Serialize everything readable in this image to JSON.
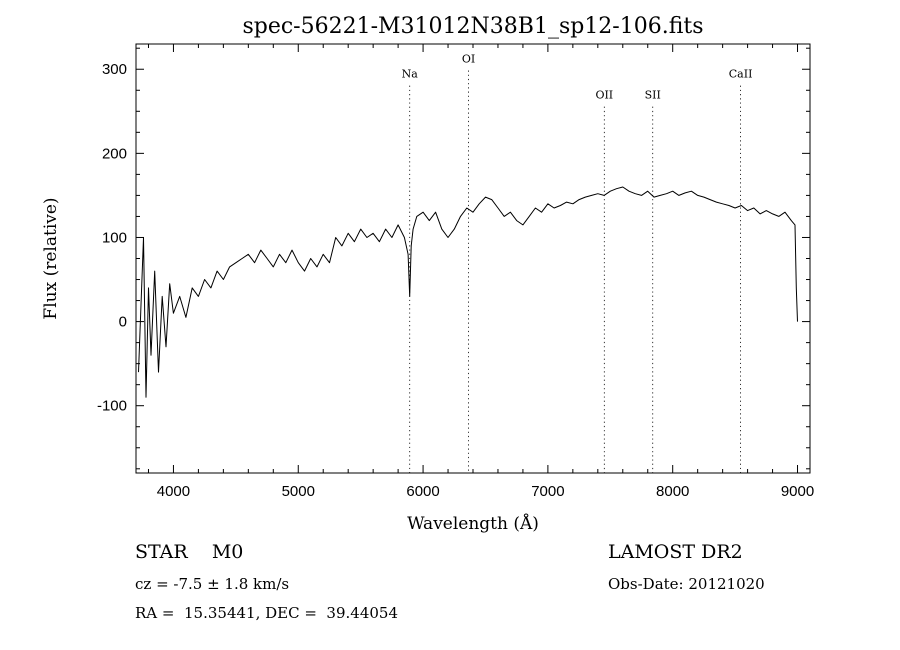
{
  "chart_data": {
    "type": "line",
    "title": "spec-56221-M31012N38B1_sp12-106.fits",
    "xlabel": "Wavelength (Å)",
    "ylabel": "Flux (relative)",
    "xlim": [
      3700,
      9100
    ],
    "ylim": [
      -180,
      330
    ],
    "xticks": [
      4000,
      5000,
      6000,
      7000,
      8000,
      9000
    ],
    "yticks": [
      -100,
      0,
      100,
      200,
      300
    ],
    "grid": false,
    "series": [
      {
        "x": [
          3720,
          3740,
          3760,
          3780,
          3800,
          3820,
          3850,
          3880,
          3910,
          3940,
          3970,
          4000,
          4050,
          4100,
          4150,
          4200,
          4250,
          4300,
          4350,
          4400,
          4450,
          4500,
          4550,
          4600,
          4650,
          4700,
          4750,
          4800,
          4850,
          4900,
          4950,
          5000,
          5050,
          5100,
          5150,
          5200,
          5250,
          5300,
          5350,
          5400,
          5450,
          5500,
          5550,
          5600,
          5650,
          5700,
          5750,
          5800,
          5850,
          5880,
          5893,
          5905,
          5920,
          5950,
          6000,
          6050,
          6100,
          6150,
          6200,
          6250,
          6300,
          6350,
          6400,
          6450,
          6500,
          6550,
          6600,
          6650,
          6700,
          6750,
          6800,
          6850,
          6900,
          6950,
          7000,
          7050,
          7100,
          7150,
          7200,
          7250,
          7300,
          7350,
          7400,
          7450,
          7500,
          7550,
          7600,
          7650,
          7700,
          7750,
          7800,
          7850,
          7900,
          7950,
          8000,
          8050,
          8100,
          8150,
          8200,
          8250,
          8300,
          8350,
          8400,
          8450,
          8500,
          8550,
          8600,
          8650,
          8700,
          8750,
          8800,
          8850,
          8900,
          8950,
          8980,
          8990,
          9000
        ],
        "y": [
          -60,
          20,
          100,
          -90,
          40,
          -40,
          60,
          -60,
          30,
          -30,
          45,
          10,
          30,
          5,
          40,
          30,
          50,
          40,
          60,
          50,
          65,
          70,
          75,
          80,
          70,
          85,
          75,
          65,
          80,
          70,
          85,
          70,
          60,
          75,
          65,
          80,
          70,
          100,
          90,
          105,
          95,
          110,
          100,
          105,
          95,
          110,
          100,
          115,
          100,
          80,
          30,
          90,
          110,
          125,
          130,
          120,
          130,
          110,
          100,
          110,
          125,
          135,
          130,
          140,
          148,
          145,
          135,
          125,
          130,
          120,
          115,
          125,
          135,
          130,
          140,
          135,
          138,
          142,
          140,
          145,
          148,
          150,
          152,
          150,
          155,
          158,
          160,
          155,
          152,
          150,
          155,
          148,
          150,
          152,
          155,
          150,
          153,
          155,
          150,
          148,
          145,
          142,
          140,
          138,
          135,
          138,
          132,
          135,
          128,
          132,
          128,
          125,
          130,
          120,
          115,
          40,
          0
        ]
      }
    ],
    "annotations": [
      {
        "label": "Na",
        "x": 5893,
        "label_y": 290
      },
      {
        "label": "OI",
        "x": 6364,
        "label_y": 308
      },
      {
        "label": "OII",
        "x": 7452,
        "label_y": 265
      },
      {
        "label": "SII",
        "x": 7840,
        "label_y": 265
      },
      {
        "label": "CaII",
        "x": 8544,
        "label_y": 290
      }
    ]
  },
  "info": {
    "type_line": "STAR    M0",
    "cz_line": "cz = -7.5 ± 1.8 km/s",
    "radec_line": "RA =  15.35441, DEC =  39.44054",
    "survey": "LAMOST DR2",
    "obs_date": "Obs-Date: 20121020"
  }
}
